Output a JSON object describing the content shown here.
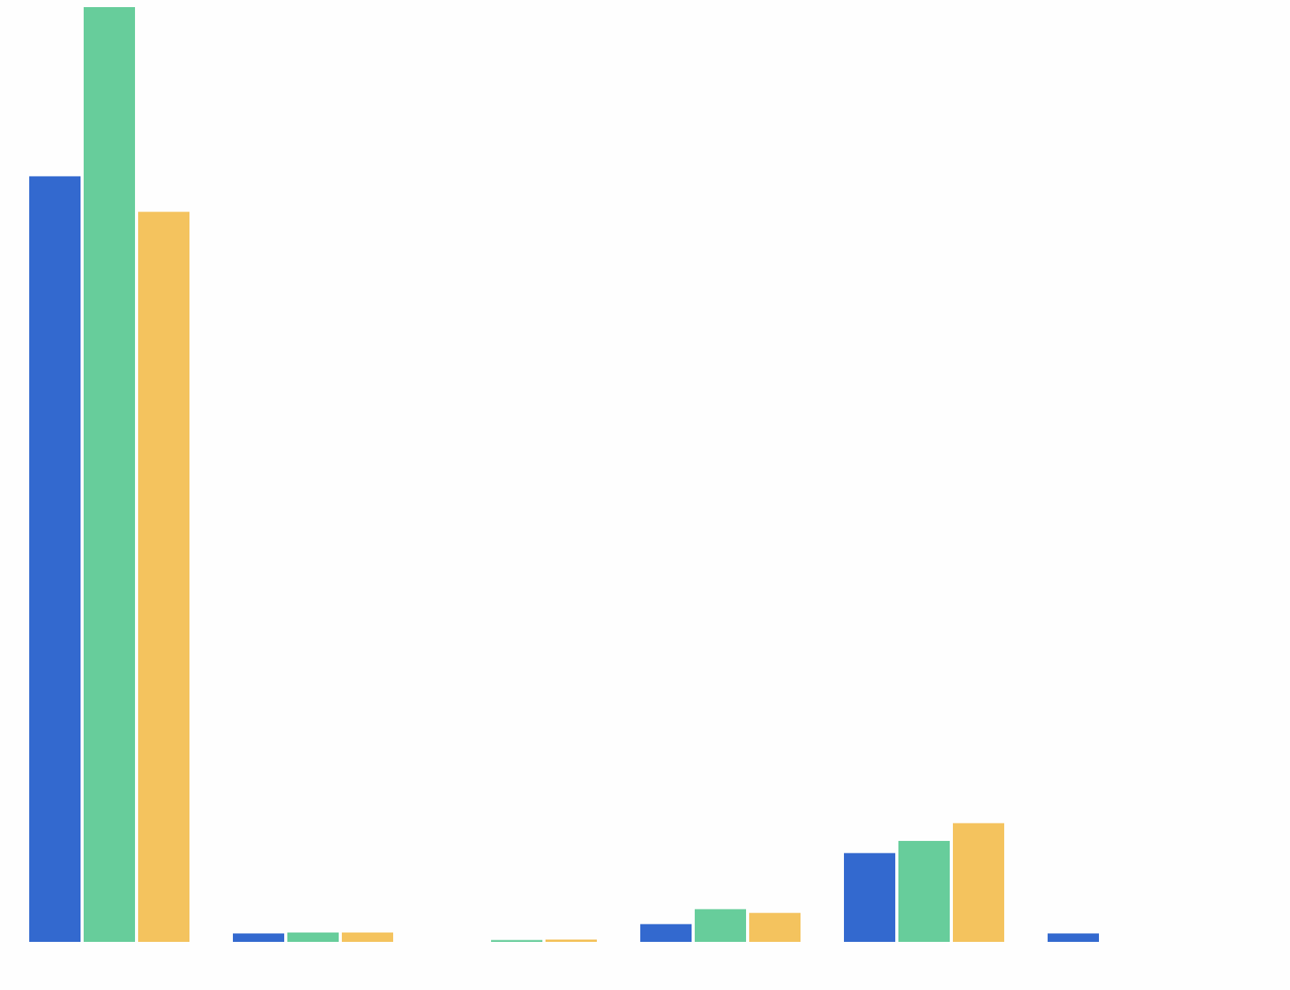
{
  "chart_data": {
    "type": "bar",
    "title": "",
    "xlabel": "",
    "ylabel": "",
    "categories": [
      "",
      "",
      "",
      "",
      "",
      ""
    ],
    "ylim": [
      0,
      100
    ],
    "grid": false,
    "legend": "none",
    "series": [
      {
        "color": "#3369cf",
        "values": [
          81.9,
          0.9,
          0,
          1.9,
          9.5,
          0.9
        ]
      },
      {
        "color": "#67cd9b",
        "values": [
          100,
          1.0,
          0.2,
          3.5,
          10.8,
          0
        ]
      },
      {
        "color": "#f4c35e",
        "values": [
          78.1,
          1.0,
          0.25,
          3.1,
          12.7,
          0
        ]
      }
    ]
  }
}
